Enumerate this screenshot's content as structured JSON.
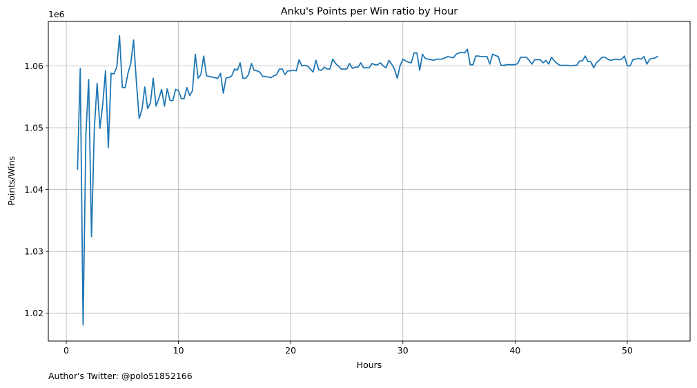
{
  "footer": {
    "credit": "Author's Twitter: @polo51852166"
  },
  "chart_data": {
    "type": "line",
    "title": "Anku's Points per Win ratio by Hour",
    "xlabel": "Hours",
    "ylabel": "Points/Wins",
    "y_offset_label": "1e6",
    "xlim": [
      -1.6,
      55.6
    ],
    "ylim": [
      1.0155,
      1.0672
    ],
    "x_ticks": [
      0,
      10,
      20,
      30,
      40,
      50
    ],
    "x_tick_labels": [
      "0",
      "10",
      "20",
      "30",
      "40",
      "50"
    ],
    "y_ticks": [
      1.02,
      1.03,
      1.04,
      1.05,
      1.06
    ],
    "y_tick_labels": [
      "1.02",
      "1.03",
      "1.04",
      "1.05",
      "1.06"
    ],
    "grid": true,
    "line_color": "#1f77b4",
    "series": [
      {
        "x": [
          1.0,
          1.25,
          1.5,
          1.75,
          2.0,
          2.25,
          2.5,
          2.75,
          3.0,
          3.25,
          3.5,
          3.75,
          4.0,
          4.25,
          4.5,
          4.75,
          5.0,
          5.25,
          5.5,
          5.75,
          6.0,
          6.25,
          6.5,
          6.75,
          7.0,
          7.25,
          7.5,
          7.75,
          8.0,
          8.25,
          8.5,
          8.75,
          9.0,
          9.25,
          9.5,
          9.75,
          10.0,
          10.25,
          10.5,
          10.75,
          11.0,
          11.25,
          11.5,
          11.75,
          12.0,
          12.25,
          12.5,
          12.75,
          13.0,
          13.25,
          13.5,
          13.75,
          14.0,
          14.25,
          14.5,
          14.75,
          15.0,
          15.25,
          15.5,
          15.75,
          16.0,
          16.25,
          16.5,
          16.75,
          17.0,
          17.25,
          17.5,
          17.75,
          18.0,
          18.25,
          18.5,
          18.75,
          19.0,
          19.25,
          19.5,
          19.75,
          20.0,
          20.25,
          20.5,
          20.75,
          21.0,
          21.25,
          21.5,
          21.75,
          22.0,
          22.25,
          22.5,
          22.75,
          23.0,
          23.25,
          23.5,
          23.75,
          24.0,
          24.25,
          24.5,
          24.75,
          25.0,
          25.25,
          25.5,
          25.75,
          26.0,
          26.25,
          26.5,
          26.75,
          27.0,
          27.25,
          27.5,
          27.75,
          28.0,
          28.25,
          28.5,
          28.75,
          29.0,
          29.25,
          29.5,
          29.75,
          30.0,
          30.25,
          30.5,
          30.75,
          31.0,
          31.25,
          31.5,
          31.75,
          32.0,
          32.25,
          32.5,
          32.75,
          33.0,
          33.25,
          33.5,
          33.75,
          34.0,
          34.25,
          34.5,
          34.75,
          35.0,
          35.25,
          35.5,
          35.75,
          36.0,
          36.25,
          36.5,
          36.75,
          37.0,
          37.25,
          37.5,
          37.75,
          38.0,
          38.25,
          38.5,
          38.75,
          39.0,
          39.25,
          39.5,
          39.75,
          40.0,
          40.25,
          40.5,
          40.75,
          41.0,
          41.25,
          41.5,
          41.75,
          42.0,
          42.25,
          42.5,
          42.75,
          43.0,
          43.25,
          43.5,
          43.75,
          44.0,
          44.25,
          44.5,
          44.75,
          45.0,
          45.25,
          45.5,
          45.75,
          46.0,
          46.25,
          46.5,
          46.75,
          47.0,
          47.25,
          47.5,
          47.75,
          48.0,
          48.25,
          48.5,
          48.75,
          49.0,
          49.25,
          49.5,
          49.75,
          50.0,
          50.25,
          50.5,
          50.75,
          51.0,
          51.25,
          51.5,
          51.75,
          52.0,
          52.25,
          52.5,
          52.75
        ],
        "y": [
          1.0432,
          1.0596,
          1.0181,
          1.049,
          1.0578,
          1.0324,
          1.0498,
          1.0572,
          1.0499,
          1.0538,
          1.0592,
          1.0468,
          1.0588,
          1.0587,
          1.0598,
          1.0649,
          1.0565,
          1.0565,
          1.0588,
          1.0604,
          1.0642,
          1.0575,
          1.0515,
          1.053,
          1.0566,
          1.0531,
          1.054,
          1.058,
          1.0535,
          1.0547,
          1.0562,
          1.0535,
          1.0563,
          1.0544,
          1.0544,
          1.0562,
          1.056,
          1.0547,
          1.0547,
          1.0565,
          1.0552,
          1.056,
          1.0619,
          1.058,
          1.0586,
          1.0616,
          1.0584,
          1.0583,
          1.0582,
          1.0581,
          1.058,
          1.0588,
          1.0556,
          1.0581,
          1.0581,
          1.0584,
          1.0595,
          1.0593,
          1.0605,
          1.058,
          1.058,
          1.0586,
          1.0604,
          1.0593,
          1.0592,
          1.059,
          1.0583,
          1.0583,
          1.0582,
          1.0581,
          1.0584,
          1.0586,
          1.0595,
          1.0595,
          1.0586,
          1.0592,
          1.0592,
          1.0593,
          1.0592,
          1.061,
          1.06,
          1.0601,
          1.06,
          1.0595,
          1.059,
          1.0609,
          1.0594,
          1.0593,
          1.0598,
          1.0595,
          1.0595,
          1.0611,
          1.0604,
          1.06,
          1.0595,
          1.0595,
          1.0595,
          1.0604,
          1.0596,
          1.0598,
          1.0598,
          1.0605,
          1.0597,
          1.0597,
          1.0597,
          1.0604,
          1.0602,
          1.0602,
          1.0605,
          1.06,
          1.0597,
          1.0609,
          1.0603,
          1.0595,
          1.058,
          1.06,
          1.0611,
          1.0608,
          1.0606,
          1.0605,
          1.0621,
          1.0621,
          1.0593,
          1.0619,
          1.0612,
          1.0611,
          1.061,
          1.0609,
          1.0611,
          1.0611,
          1.0611,
          1.0613,
          1.0615,
          1.0614,
          1.0613,
          1.0619,
          1.0621,
          1.0622,
          1.0621,
          1.0627,
          1.0602,
          1.0602,
          1.0616,
          1.0616,
          1.0615,
          1.0615,
          1.0615,
          1.0603,
          1.0619,
          1.0617,
          1.0615,
          1.0601,
          1.0601,
          1.0602,
          1.0602,
          1.0602,
          1.0602,
          1.0604,
          1.0614,
          1.0614,
          1.0614,
          1.0609,
          1.0603,
          1.061,
          1.061,
          1.061,
          1.0605,
          1.0609,
          1.0603,
          1.0614,
          1.0608,
          1.0604,
          1.0601,
          1.0601,
          1.0601,
          1.0601,
          1.06,
          1.0601,
          1.0601,
          1.0608,
          1.0608,
          1.0616,
          1.0607,
          1.0607,
          1.0597,
          1.0605,
          1.0609,
          1.0614,
          1.0614,
          1.0611,
          1.0609,
          1.061,
          1.0611,
          1.061,
          1.0611,
          1.0616,
          1.06,
          1.06,
          1.061,
          1.0611,
          1.0612,
          1.0611,
          1.0615,
          1.0603,
          1.0611,
          1.0612,
          1.0613,
          1.0616
        ]
      }
    ]
  }
}
